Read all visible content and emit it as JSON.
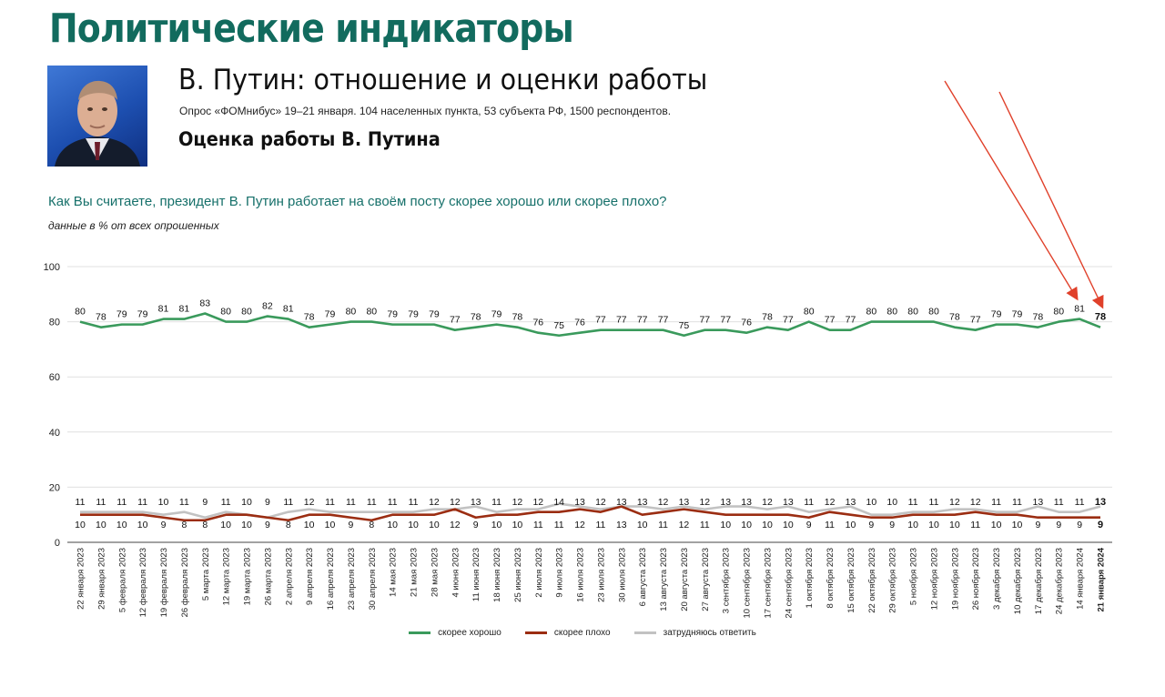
{
  "header": {
    "main_title": "Политические индикаторы",
    "subtitle": "В. Путин: отношение и оценки работы",
    "survey_info": "Опрос «ФОМнибус» 19–21 января. 104 населенных пункта, 53 субъекта РФ, 1500 респондентов.",
    "section_title": "Оценка работы В. Путина"
  },
  "question": "Как Вы считаете, президент В. Путин работает на своём посту скорее хорошо или скорее плохо?",
  "data_note": "данные в % от всех опрошенных",
  "colors": {
    "good": "#3a9a5c",
    "bad": "#9b2d12",
    "unsure": "#c2c2c2",
    "title": "#126b5e",
    "annotation_arrow": "#e0402a"
  },
  "chart_data": {
    "type": "line",
    "ylim": [
      0,
      100
    ],
    "yticks": [
      0,
      20,
      40,
      60,
      80,
      100
    ],
    "grid": true,
    "legend_position": "bottom-center",
    "categories": [
      "22 января 2023",
      "29 января 2023",
      "5 февраля 2023",
      "12 февраля 2023",
      "19 февраля 2023",
      "26 февраля 2023",
      "5 марта 2023",
      "12 марта 2023",
      "19 марта 2023",
      "26 марта 2023",
      "2 апреля 2023",
      "9 апреля 2023",
      "16 апреля 2023",
      "23 апреля 2023",
      "30 апреля 2023",
      "14 мая 2023",
      "21 мая 2023",
      "28 мая 2023",
      "4 июня 2023",
      "11 июня 2023",
      "18 июня 2023",
      "25 июня 2023",
      "2 июля 2023",
      "9 июля 2023",
      "16 июля 2023",
      "23 июля 2023",
      "30 июля 2023",
      "6 августа 2023",
      "13 августа 2023",
      "20 августа 2023",
      "27 августа 2023",
      "3 сентября 2023",
      "10 сентября 2023",
      "17 сентября 2023",
      "24 сентября 2023",
      "1 октября 2023",
      "8 октября 2023",
      "15 октября 2023",
      "22 октября 2023",
      "29 октября 2023",
      "5 ноября 2023",
      "12 ноября 2023",
      "19 ноября 2023",
      "26 ноября 2023",
      "3 декабря 2023",
      "10 декабря 2023",
      "17 декабря 2023",
      "24 декабря 2023",
      "14 января 2024",
      "21 января 2024"
    ],
    "series": [
      {
        "name": "скорее хорошо",
        "color": "#3a9a5c",
        "values": [
          80,
          78,
          79,
          79,
          81,
          81,
          83,
          80,
          80,
          82,
          81,
          78,
          79,
          80,
          80,
          79,
          79,
          79,
          77,
          78,
          79,
          78,
          76,
          75,
          76,
          77,
          77,
          77,
          77,
          75,
          77,
          77,
          76,
          78,
          77,
          80,
          77,
          77,
          80,
          80,
          80,
          80,
          78,
          77,
          79,
          79,
          78,
          80,
          81,
          78
        ]
      },
      {
        "name": "скорее плохо",
        "color": "#9b2d12",
        "values": [
          10,
          10,
          10,
          10,
          9,
          8,
          8,
          10,
          10,
          9,
          8,
          10,
          10,
          9,
          8,
          10,
          10,
          10,
          12,
          9,
          10,
          10,
          11,
          11,
          12,
          11,
          13,
          10,
          11,
          12,
          11,
          10,
          10,
          10,
          10,
          9,
          11,
          10,
          9,
          9,
          10,
          10,
          10,
          11,
          10,
          10,
          9,
          9,
          9,
          9
        ]
      },
      {
        "name": "затрудняюсь ответить",
        "color": "#c2c2c2",
        "values": [
          11,
          11,
          11,
          11,
          10,
          11,
          9,
          11,
          10,
          9,
          11,
          12,
          11,
          11,
          11,
          11,
          11,
          12,
          12,
          13,
          11,
          12,
          12,
          14,
          13,
          12,
          13,
          13,
          12,
          13,
          12,
          13,
          13,
          12,
          13,
          11,
          12,
          13,
          10,
          10,
          11,
          11,
          12,
          12,
          11,
          11,
          13,
          11,
          11,
          13
        ]
      }
    ]
  }
}
